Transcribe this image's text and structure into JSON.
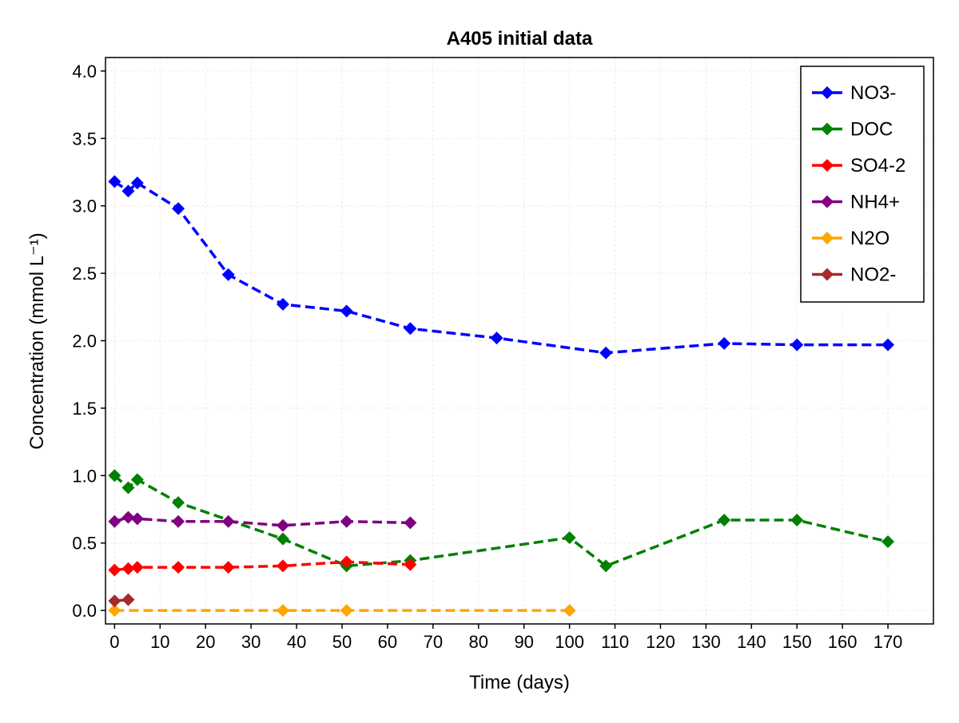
{
  "chart_data": {
    "type": "line",
    "title": "A405 initial data",
    "xlabel": "Time (days)",
    "ylabel": "Concentration (mmol L⁻¹)",
    "xlim": [
      -2,
      180
    ],
    "ylim": [
      -0.1,
      4.1
    ],
    "xticks": [
      0,
      10,
      20,
      30,
      40,
      50,
      60,
      70,
      80,
      90,
      100,
      110,
      120,
      130,
      140,
      150,
      160,
      170
    ],
    "yticks": [
      "0.0",
      "0.5",
      "1.0",
      "1.5",
      "2.0",
      "2.5",
      "3.0",
      "3.5",
      "4.0"
    ],
    "grid": true,
    "legend_position": "top-right",
    "line_style": "dashed",
    "marker": "diamond",
    "series": [
      {
        "name": "NO3-",
        "color": "#0000ff",
        "x": [
          0,
          3,
          5,
          14,
          25,
          37,
          51,
          65,
          84,
          108,
          134,
          150,
          170
        ],
        "y": [
          3.18,
          3.11,
          3.17,
          2.98,
          2.49,
          2.27,
          2.22,
          2.09,
          2.02,
          1.91,
          1.98,
          1.97,
          1.97
        ]
      },
      {
        "name": "DOC",
        "color": "#008000",
        "x": [
          0,
          3,
          5,
          14,
          37,
          51,
          65,
          100,
          108,
          134,
          150,
          170
        ],
        "y": [
          1.0,
          0.91,
          0.97,
          0.8,
          0.53,
          0.33,
          0.37,
          0.54,
          0.33,
          0.67,
          0.67,
          0.51
        ]
      },
      {
        "name": "SO4-2",
        "color": "#ff0000",
        "x": [
          0,
          3,
          5,
          14,
          25,
          37,
          51,
          65
        ],
        "y": [
          0.3,
          0.31,
          0.32,
          0.32,
          0.32,
          0.33,
          0.36,
          0.34
        ]
      },
      {
        "name": "NH4+",
        "color": "#800080",
        "x": [
          0,
          3,
          5,
          14,
          25,
          37,
          51,
          65
        ],
        "y": [
          0.66,
          0.69,
          0.68,
          0.66,
          0.66,
          0.63,
          0.66,
          0.65
        ]
      },
      {
        "name": "N2O",
        "color": "#ffa500",
        "x": [
          0,
          37,
          51,
          100
        ],
        "y": [
          0.0,
          0.0,
          0.0,
          0.0
        ]
      },
      {
        "name": "NO2-",
        "color": "#a52a2a",
        "x": [
          0,
          3
        ],
        "y": [
          0.07,
          0.08
        ]
      }
    ]
  }
}
